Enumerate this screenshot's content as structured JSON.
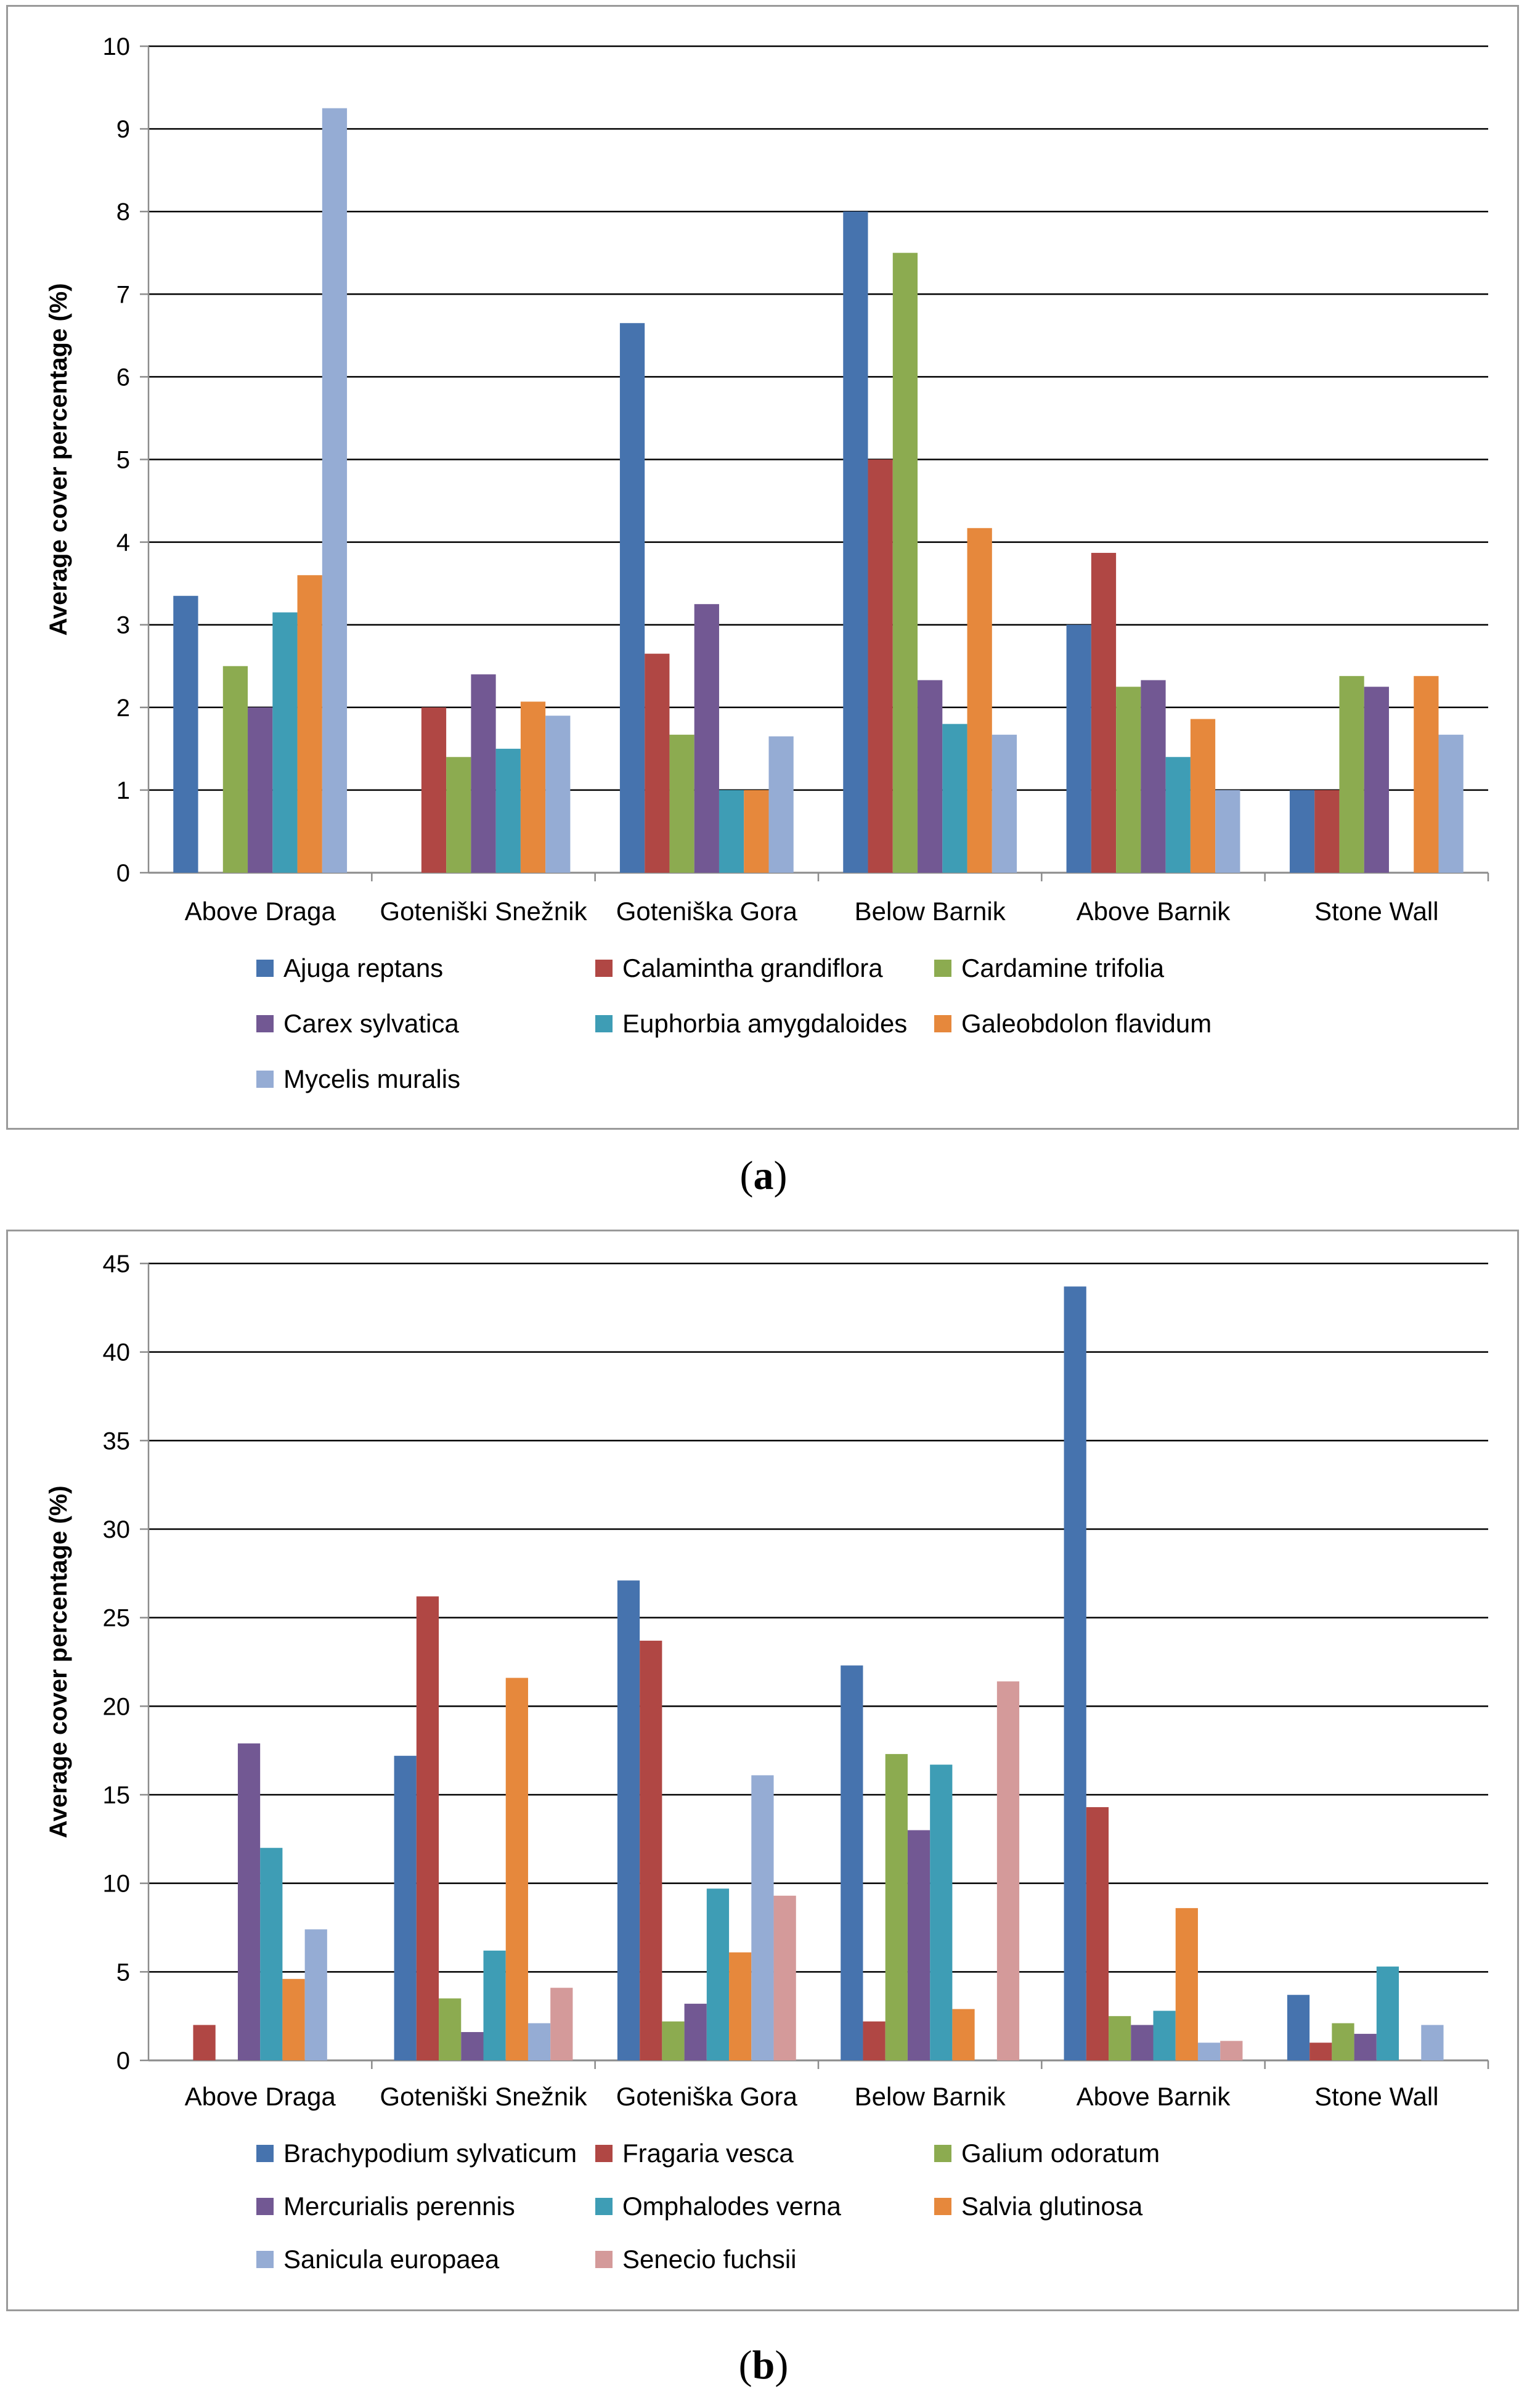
{
  "chart_data": [
    {
      "panel": "a",
      "type": "bar",
      "caption_letter": "a",
      "ylabel": "Average cover percentage (%)",
      "ylim": [
        0,
        10
      ],
      "ytick_step": 1,
      "grid": true,
      "legend_position": "bottom",
      "categories": [
        "Above Draga",
        "Goteniški Snežnik",
        "Goteniška Gora",
        "Below Barnik",
        "Above Barnik",
        "Stone Wall"
      ],
      "series": [
        {
          "name": "Ajuga reptans",
          "color": "#4673ae",
          "values": [
            3.35,
            0,
            6.65,
            8.0,
            3.0,
            1.0
          ]
        },
        {
          "name": "Calamintha grandiflora",
          "color": "#b04744",
          "values": [
            0,
            2.0,
            2.65,
            5.0,
            3.87,
            1.0
          ]
        },
        {
          "name": "Cardamine trifolia",
          "color": "#8cab50",
          "values": [
            2.5,
            1.4,
            1.67,
            7.5,
            2.25,
            2.38
          ]
        },
        {
          "name": "Carex sylvatica",
          "color": "#725893",
          "values": [
            2.0,
            2.4,
            3.25,
            2.33,
            2.33,
            2.25
          ]
        },
        {
          "name": "Euphorbia amygdaloides",
          "color": "#3e9db5",
          "values": [
            3.15,
            1.5,
            1.0,
            1.8,
            1.4,
            0
          ]
        },
        {
          "name": "Galeobdolon flavidum",
          "color": "#e6883c",
          "values": [
            3.6,
            2.07,
            1.0,
            4.17,
            1.86,
            2.38
          ]
        },
        {
          "name": "Mycelis muralis",
          "color": "#95acd4",
          "values": [
            9.25,
            1.9,
            1.65,
            1.67,
            1.0,
            1.67
          ]
        }
      ]
    },
    {
      "panel": "b",
      "type": "bar",
      "caption_letter": "b",
      "ylabel": "Average cover percentage (%)",
      "ylim": [
        0,
        45
      ],
      "ytick_step": 5,
      "grid": true,
      "legend_position": "bottom",
      "categories": [
        "Above Draga",
        "Goteniški Snežnik",
        "Goteniška Gora",
        "Below Barnik",
        "Above Barnik",
        "Stone Wall"
      ],
      "series": [
        {
          "name": "Brachypodium sylvaticum",
          "color": "#4673ae",
          "values": [
            0,
            17.2,
            27.1,
            22.3,
            43.7,
            3.7
          ]
        },
        {
          "name": "Fragaria vesca",
          "color": "#b04744",
          "values": [
            2.0,
            26.2,
            23.7,
            2.2,
            14.3,
            1.0
          ]
        },
        {
          "name": "Galium odoratum",
          "color": "#8cab50",
          "values": [
            0,
            3.5,
            2.2,
            17.3,
            2.5,
            2.1
          ]
        },
        {
          "name": "Mercurialis perennis",
          "color": "#725893",
          "values": [
            17.9,
            1.6,
            3.2,
            13.0,
            2.0,
            1.5
          ]
        },
        {
          "name": "Omphalodes verna",
          "color": "#3e9db5",
          "values": [
            12.0,
            6.2,
            9.7,
            16.7,
            2.8,
            5.3
          ]
        },
        {
          "name": "Salvia glutinosa",
          "color": "#e6883c",
          "values": [
            4.6,
            21.6,
            6.1,
            2.9,
            8.6,
            0
          ]
        },
        {
          "name": "Sanicula europaea",
          "color": "#95acd4",
          "values": [
            7.4,
            2.1,
            16.1,
            0,
            1.0,
            2.0
          ]
        },
        {
          "name": "Senecio fuchsii",
          "color": "#d49a9a",
          "values": [
            0,
            4.1,
            9.3,
            21.4,
            1.1,
            0
          ]
        }
      ]
    }
  ]
}
